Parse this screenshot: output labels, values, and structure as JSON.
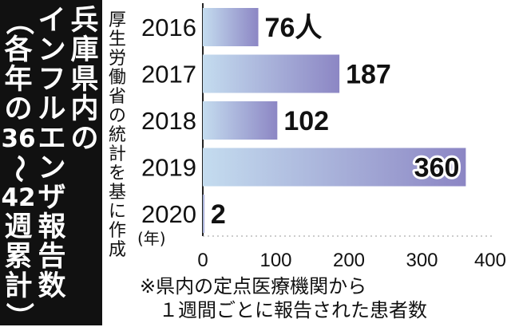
{
  "title": {
    "col1": [
      "兵",
      "庫",
      "県",
      "内",
      "の"
    ],
    "col2": [
      "イ",
      "ン",
      "フ",
      "ル",
      "エ",
      "ン",
      "ザ",
      "報",
      "告",
      "数"
    ],
    "col3": [
      "（",
      "各",
      "年",
      "の",
      "36",
      "〜",
      "42",
      "週",
      "累",
      "計",
      "）"
    ]
  },
  "source": [
    "厚",
    "生",
    "労",
    "働",
    "省",
    "の",
    "統",
    "計",
    "を",
    "基",
    "に",
    "作",
    "成"
  ],
  "note": {
    "line1": "※県内の定点医療機関から",
    "line2": "　１週間ごとに報告された患者数"
  },
  "colors": {
    "bar_gradient_start": "#c4dcef",
    "bar_gradient_end": "#8c86c4",
    "background": "#ffffff",
    "title_panel": "#111111"
  },
  "chart_data": {
    "type": "bar",
    "orientation": "horizontal",
    "categories": [
      "2016",
      "2017",
      "2018",
      "2019",
      "2020"
    ],
    "values": [
      76,
      187,
      102,
      360,
      2
    ],
    "value_labels": [
      "76人",
      "187",
      "102",
      "360",
      "2"
    ],
    "category_unit": "(年)",
    "xlim": [
      0,
      400
    ],
    "xticks": [
      "0",
      "100",
      "200",
      "300",
      "400"
    ],
    "grid": false
  }
}
